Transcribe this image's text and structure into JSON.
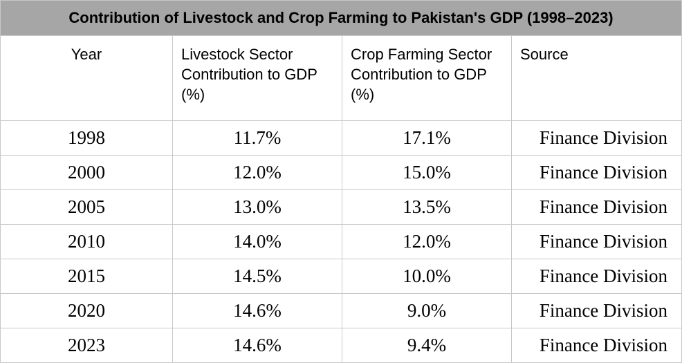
{
  "table": {
    "title": "Contribution of Livestock and Crop Farming to Pakistan's GDP (1998–2023)",
    "headers": [
      "Year",
      "Livestock Sector Contribution to GDP (%)",
      "Crop Farming Sector Contribution to GDP (%)",
      "Source"
    ],
    "rows": [
      [
        "1998",
        "11.7%",
        "17.1%",
        "Finance Division"
      ],
      [
        "2000",
        "12.0%",
        "15.0%",
        "Finance Division"
      ],
      [
        "2005",
        "13.0%",
        "13.5%",
        "Finance Division"
      ],
      [
        "2010",
        "14.0%",
        "12.0%",
        "Finance Division"
      ],
      [
        "2015",
        "14.5%",
        "10.0%",
        "Finance Division"
      ],
      [
        "2020",
        "14.6%",
        "9.0%",
        "Finance Division"
      ],
      [
        "2023",
        "14.6%",
        "9.4%",
        "Finance Division"
      ]
    ]
  }
}
